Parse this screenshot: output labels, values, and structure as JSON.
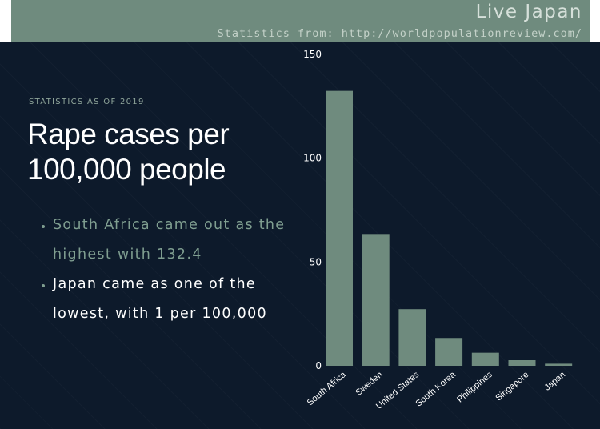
{
  "banner": {
    "title": "Live Japan",
    "source": "Statistics from: http://worldpopulationreview.com/"
  },
  "stats_label": "STATISTICS AS OF 2019",
  "heading_line1": "Rape cases per",
  "heading_line2": "100,000 people",
  "bullets": [
    "South Africa came out as the highest with 132.4",
    "Japan came as one of the lowest, with 1 per 100,000"
  ],
  "colors": {
    "bar": "#6f8b7e",
    "background": "#0d1a2b",
    "banner": "#6f8b7e",
    "text": "#ffffff",
    "accent_text": "#7f9e90"
  },
  "chart_data": {
    "type": "bar",
    "categories": [
      "South Africa",
      "Sweden",
      "United States",
      "South Korea",
      "Philippines",
      "Singapore",
      "Japan"
    ],
    "values": [
      132.4,
      63.5,
      27.3,
      13.4,
      6.3,
      2.7,
      1.0
    ],
    "yticks": [
      0,
      50,
      100,
      150
    ],
    "ylim": [
      0,
      150
    ],
    "title": "",
    "xlabel": "",
    "ylabel": "",
    "grid": false
  }
}
